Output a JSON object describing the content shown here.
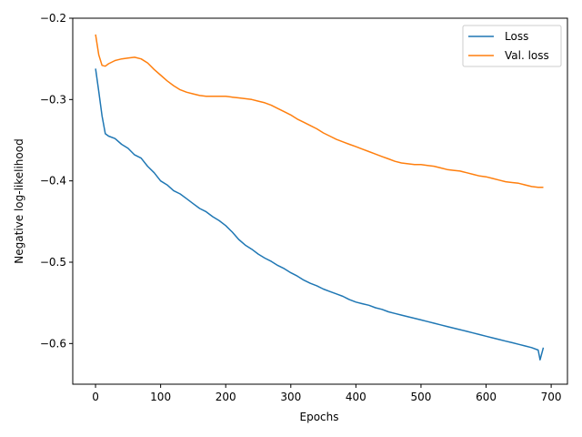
{
  "chart_data": {
    "type": "line",
    "title": "",
    "xlabel": "Epochs",
    "ylabel": "Negative log-likelihood",
    "xlim": [
      -35,
      725
    ],
    "ylim": [
      -0.65,
      -0.2
    ],
    "x_ticks": [
      0,
      100,
      200,
      300,
      400,
      500,
      600,
      700
    ],
    "x_tick_labels": [
      "0",
      "100",
      "200",
      "300",
      "400",
      "500",
      "600",
      "700"
    ],
    "y_ticks": [
      -0.2,
      -0.3,
      -0.4,
      -0.5,
      -0.6
    ],
    "y_tick_labels": [
      "−0.2",
      "−0.3",
      "−0.4",
      "−0.5",
      "−0.6"
    ],
    "grid": false,
    "legend_position": "top-right",
    "series": [
      {
        "name": "Loss",
        "color": "#1f77b4",
        "x": [
          0,
          5,
          10,
          15,
          20,
          30,
          40,
          50,
          60,
          70,
          80,
          90,
          100,
          110,
          120,
          130,
          140,
          150,
          160,
          170,
          180,
          190,
          200,
          210,
          220,
          230,
          240,
          250,
          260,
          270,
          280,
          290,
          300,
          310,
          320,
          330,
          340,
          350,
          360,
          370,
          380,
          390,
          400,
          410,
          420,
          430,
          440,
          450,
          460,
          470,
          480,
          490,
          500,
          510,
          520,
          530,
          540,
          550,
          560,
          570,
          580,
          590,
          600,
          610,
          620,
          630,
          640,
          650,
          660,
          670,
          680,
          683,
          688
        ],
        "y": [
          -0.262,
          -0.29,
          -0.32,
          -0.342,
          -0.345,
          -0.348,
          -0.355,
          -0.36,
          -0.368,
          -0.372,
          -0.382,
          -0.39,
          -0.4,
          -0.405,
          -0.412,
          -0.416,
          -0.422,
          -0.428,
          -0.434,
          -0.438,
          -0.444,
          -0.449,
          -0.455,
          -0.463,
          -0.472,
          -0.479,
          -0.484,
          -0.49,
          -0.495,
          -0.499,
          -0.504,
          -0.508,
          -0.513,
          -0.517,
          -0.522,
          -0.526,
          -0.529,
          -0.533,
          -0.536,
          -0.539,
          -0.542,
          -0.546,
          -0.549,
          -0.551,
          -0.553,
          -0.556,
          -0.558,
          -0.561,
          -0.563,
          -0.565,
          -0.567,
          -0.569,
          -0.571,
          -0.573,
          -0.575,
          -0.577,
          -0.579,
          -0.581,
          -0.583,
          -0.585,
          -0.587,
          -0.589,
          -0.591,
          -0.593,
          -0.595,
          -0.597,
          -0.599,
          -0.601,
          -0.603,
          -0.605,
          -0.608,
          -0.62,
          -0.605
        ]
      },
      {
        "name": "Val. loss",
        "color": "#ff7f0e",
        "x": [
          0,
          5,
          10,
          15,
          20,
          30,
          40,
          50,
          60,
          70,
          80,
          90,
          100,
          110,
          120,
          130,
          140,
          150,
          160,
          170,
          180,
          190,
          200,
          210,
          220,
          230,
          240,
          250,
          260,
          270,
          280,
          290,
          300,
          310,
          320,
          330,
          340,
          350,
          360,
          370,
          380,
          390,
          400,
          410,
          420,
          430,
          440,
          450,
          460,
          470,
          480,
          490,
          500,
          510,
          520,
          530,
          540,
          550,
          560,
          570,
          580,
          590,
          600,
          610,
          620,
          630,
          640,
          650,
          660,
          670,
          680,
          688
        ],
        "y": [
          -0.22,
          -0.245,
          -0.258,
          -0.259,
          -0.256,
          -0.252,
          -0.25,
          -0.249,
          -0.248,
          -0.25,
          -0.255,
          -0.263,
          -0.27,
          -0.277,
          -0.283,
          -0.288,
          -0.291,
          -0.293,
          -0.295,
          -0.296,
          -0.296,
          -0.296,
          -0.296,
          -0.297,
          -0.298,
          -0.299,
          -0.3,
          -0.302,
          -0.304,
          -0.307,
          -0.311,
          -0.315,
          -0.319,
          -0.324,
          -0.328,
          -0.332,
          -0.336,
          -0.341,
          -0.345,
          -0.349,
          -0.352,
          -0.355,
          -0.358,
          -0.361,
          -0.364,
          -0.367,
          -0.37,
          -0.373,
          -0.376,
          -0.378,
          -0.379,
          -0.38,
          -0.38,
          -0.381,
          -0.382,
          -0.384,
          -0.386,
          -0.387,
          -0.388,
          -0.39,
          -0.392,
          -0.394,
          -0.395,
          -0.397,
          -0.399,
          -0.401,
          -0.402,
          -0.403,
          -0.405,
          -0.407,
          -0.408,
          -0.408
        ]
      }
    ]
  }
}
